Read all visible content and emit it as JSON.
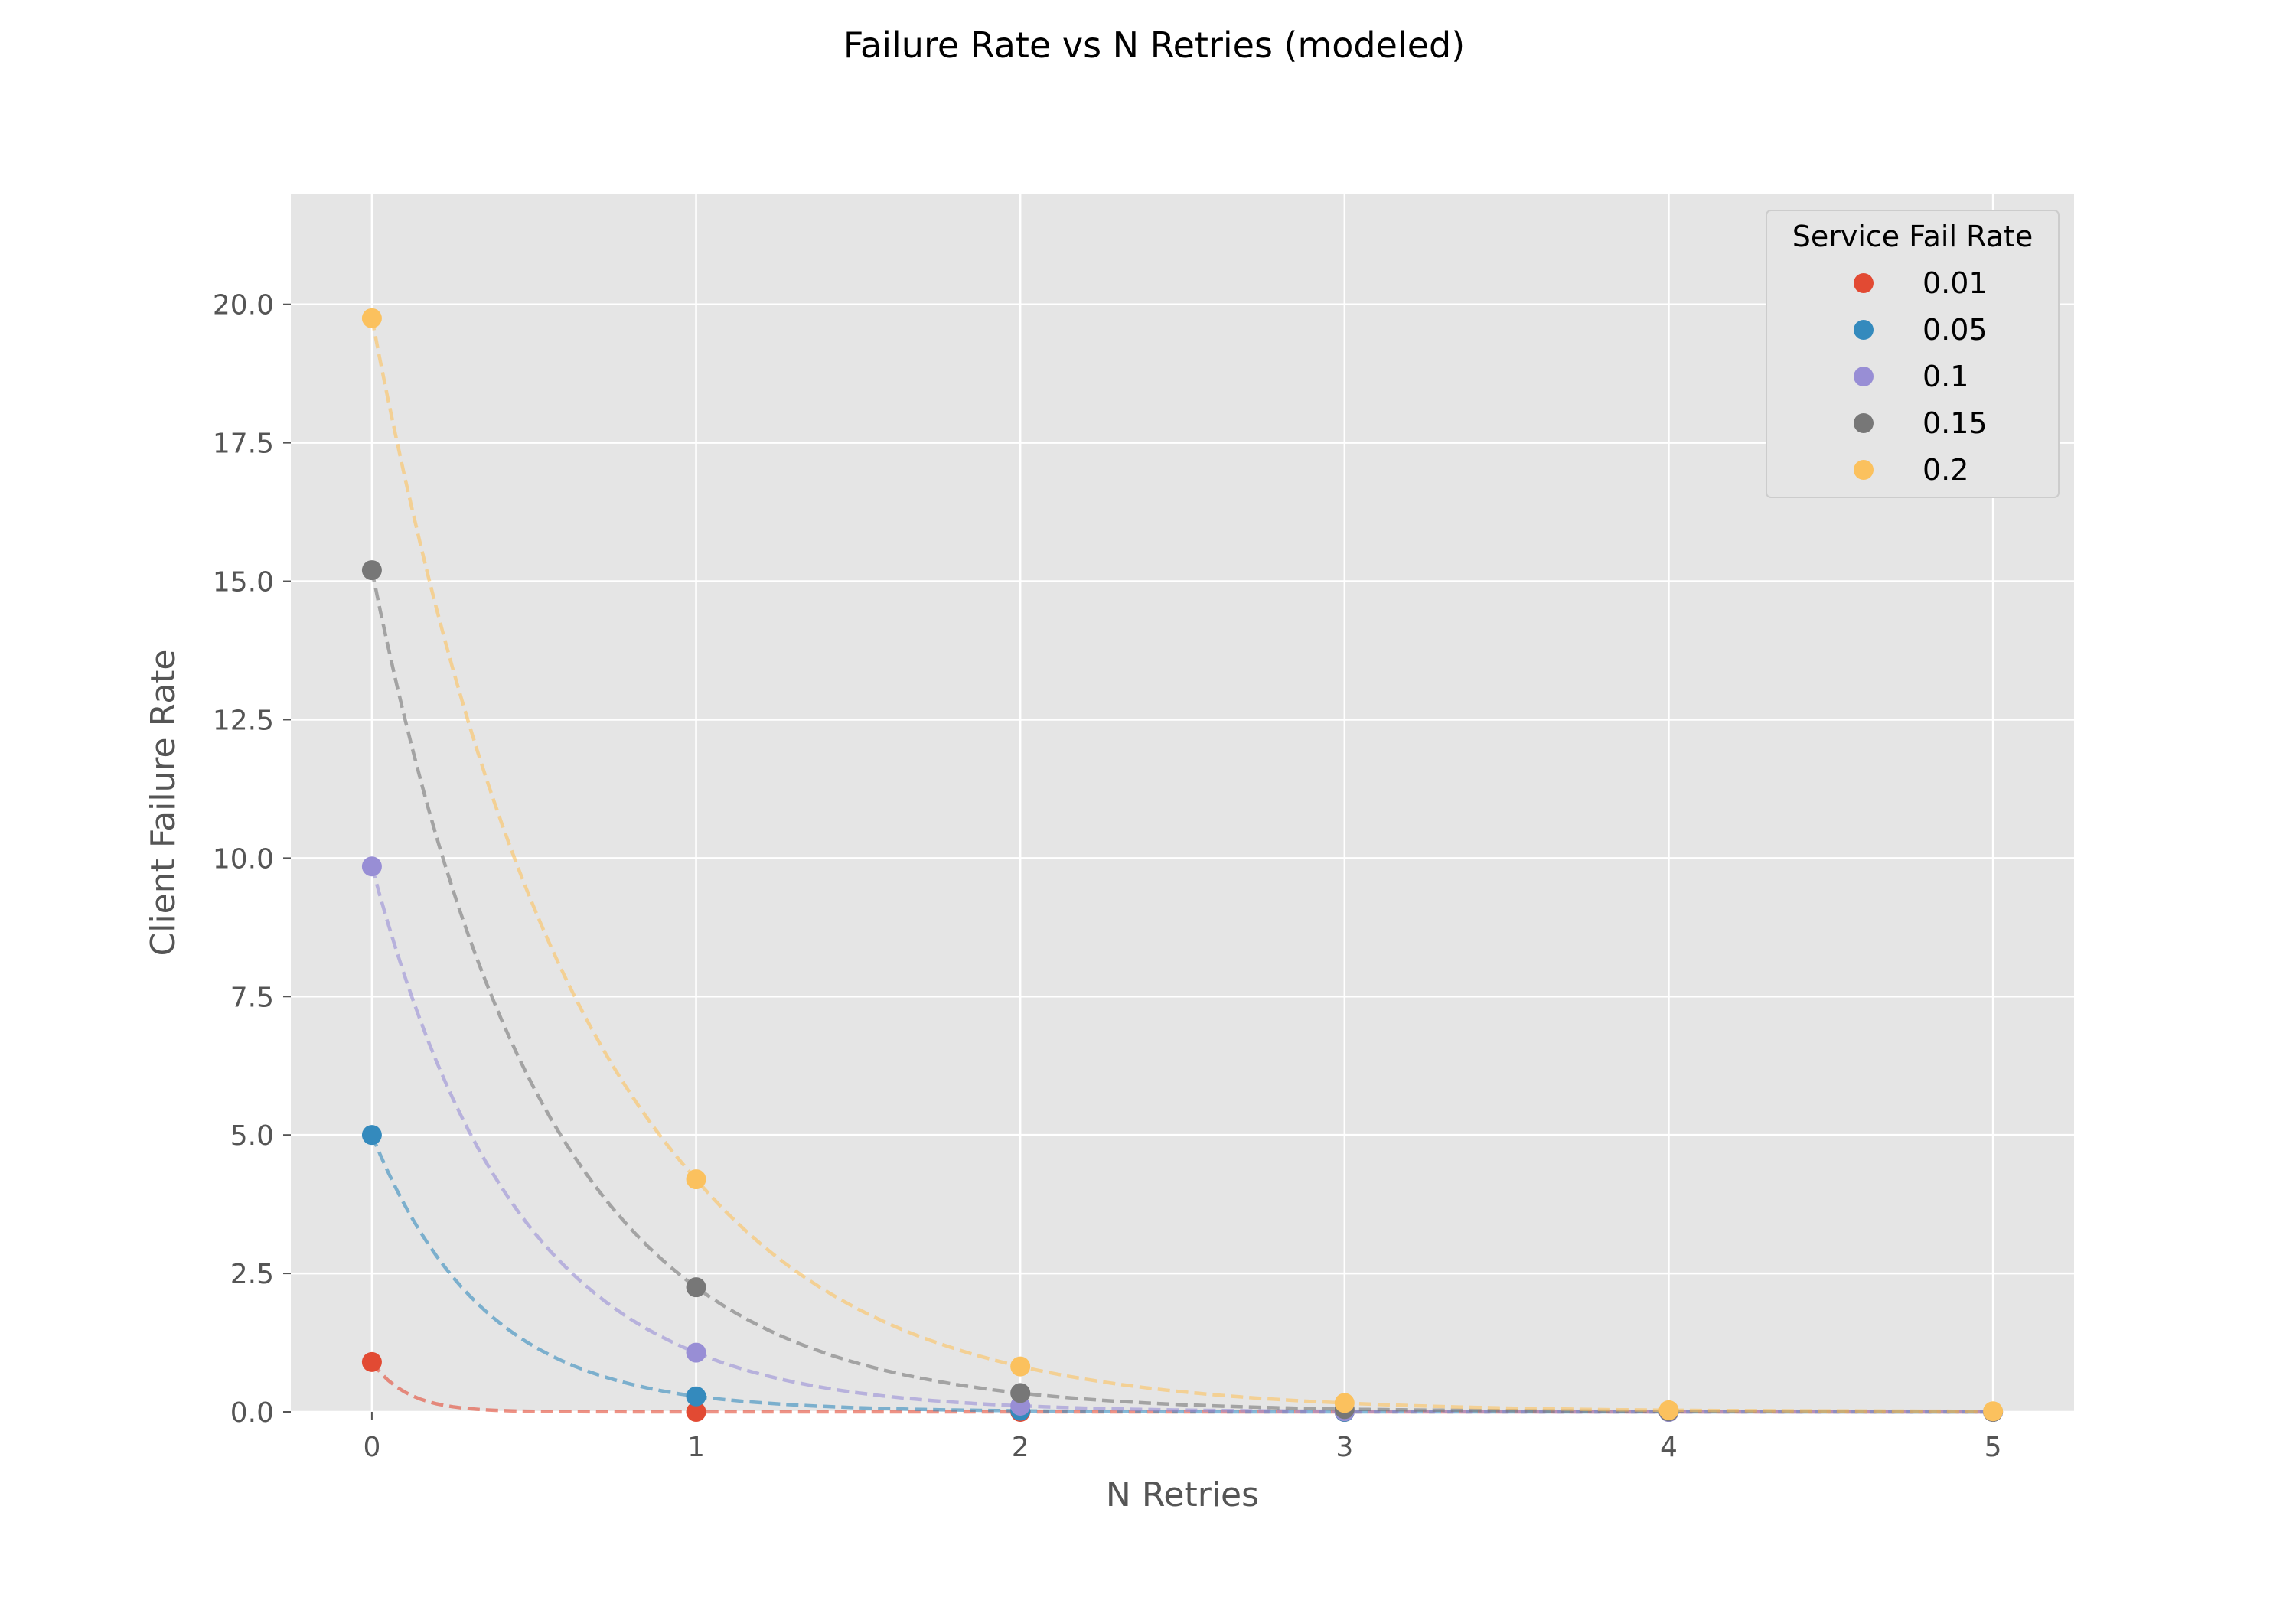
{
  "chart_data": {
    "type": "scatter",
    "title": "Failure Rate vs N Retries (modeled)",
    "xlabel": "N Retries",
    "ylabel": "Client Failure Rate",
    "xlim": [
      -0.25,
      5.25
    ],
    "ylim": [
      0,
      22
    ],
    "x_ticks": [
      0,
      1,
      2,
      3,
      4,
      5
    ],
    "y_ticks": [
      0,
      2.5,
      5,
      7.5,
      10,
      12.5,
      15,
      17.5,
      20
    ],
    "x_tick_labels": [
      "0",
      "1",
      "2",
      "3",
      "4",
      "5"
    ],
    "y_tick_labels": [
      "0.0",
      "2.5",
      "5.0",
      "7.5",
      "10.0",
      "12.5",
      "15.0",
      "17.5",
      "20.0"
    ],
    "grid": true,
    "legend": {
      "title": "Service Fail Rate",
      "placement": "top-right"
    },
    "x": [
      0,
      1,
      2,
      3,
      4,
      5
    ],
    "series": [
      {
        "name": "0.01",
        "color": "#E24A33",
        "values": [
          0.9,
          0.0,
          0.0,
          0.0,
          0.0,
          0.0
        ]
      },
      {
        "name": "0.05",
        "color": "#348ABD",
        "values": [
          5.0,
          0.28,
          0.02,
          0.0,
          0.0,
          0.0
        ]
      },
      {
        "name": "0.1",
        "color": "#988ED5",
        "values": [
          9.85,
          1.07,
          0.11,
          0.01,
          0.0,
          0.0
        ]
      },
      {
        "name": "0.15",
        "color": "#777777",
        "values": [
          15.2,
          2.25,
          0.34,
          0.05,
          0.01,
          0.0
        ]
      },
      {
        "name": "0.2",
        "color": "#FBC15E",
        "values": [
          19.75,
          4.2,
          0.82,
          0.16,
          0.03,
          0.01
        ]
      }
    ],
    "trend_style": "dashed"
  }
}
